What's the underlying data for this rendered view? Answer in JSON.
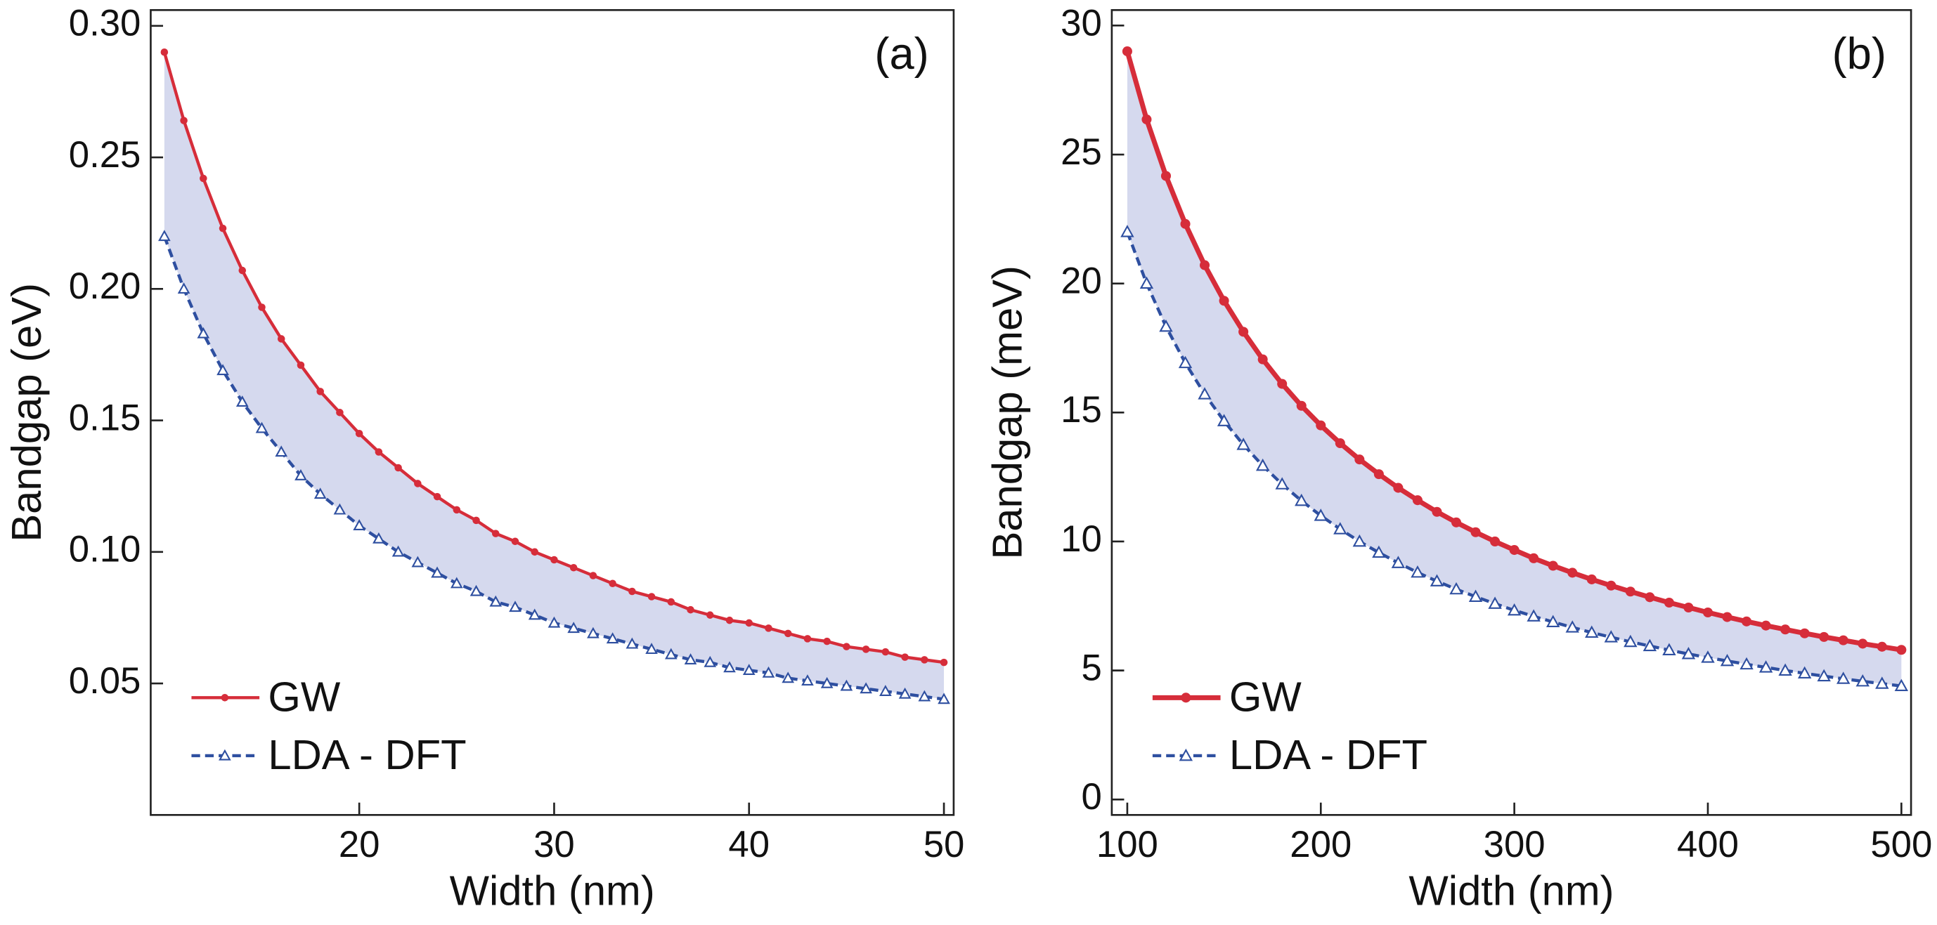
{
  "chart_data": [
    {
      "type": "line",
      "annotation": "(a)",
      "xlabel": "Width (nm)",
      "ylabel": "Bandgap (eV)",
      "x": [
        10,
        11,
        12,
        13,
        14,
        15,
        16,
        17,
        18,
        19,
        20,
        21,
        22,
        23,
        24,
        25,
        26,
        27,
        28,
        29,
        30,
        31,
        32,
        33,
        34,
        35,
        36,
        37,
        38,
        39,
        40,
        41,
        42,
        43,
        44,
        45,
        46,
        47,
        48,
        49,
        50
      ],
      "series": [
        {
          "name": "GW",
          "color": "#d62d3a",
          "marker": "circle",
          "linestyle": "solid",
          "values": [
            0.29,
            0.264,
            0.242,
            0.223,
            0.207,
            0.193,
            0.181,
            0.171,
            0.161,
            0.153,
            0.145,
            0.138,
            0.132,
            0.126,
            0.121,
            0.116,
            0.112,
            0.107,
            0.104,
            0.1,
            0.097,
            0.094,
            0.091,
            0.088,
            0.085,
            0.083,
            0.081,
            0.078,
            0.076,
            0.074,
            0.073,
            0.071,
            0.069,
            0.067,
            0.066,
            0.064,
            0.063,
            0.062,
            0.06,
            0.059,
            0.058
          ]
        },
        {
          "name": "LDA - DFT",
          "color": "#2e4fa0",
          "marker": "triangle",
          "linestyle": "dashed",
          "values": [
            0.22,
            0.2,
            0.183,
            0.169,
            0.157,
            0.147,
            0.138,
            0.129,
            0.122,
            0.116,
            0.11,
            0.105,
            0.1,
            0.096,
            0.092,
            0.088,
            0.085,
            0.081,
            0.079,
            0.076,
            0.073,
            0.071,
            0.069,
            0.067,
            0.065,
            0.063,
            0.061,
            0.059,
            0.058,
            0.056,
            0.055,
            0.054,
            0.052,
            0.051,
            0.05,
            0.049,
            0.048,
            0.047,
            0.046,
            0.045,
            0.044
          ]
        }
      ],
      "fill_between": true,
      "fill_color": "#d5d9ee",
      "xlim": [
        9.3,
        50.5
      ],
      "ylim": [
        0,
        0.306
      ],
      "xticks": [
        20,
        30,
        40,
        50
      ],
      "yticks": [
        0.05,
        {
          "value": 0.1,
          "label": "0.10"
        },
        0.15,
        {
          "value": 0.2,
          "label": "0.20"
        },
        0.25,
        {
          "value": 0.3,
          "label": "0.30"
        }
      ],
      "legend": "lower left"
    },
    {
      "type": "line",
      "annotation": "(b)",
      "xlabel": "Width (nm)",
      "ylabel": "Bandgap (meV)",
      "x": [
        100,
        110,
        120,
        130,
        140,
        150,
        160,
        170,
        180,
        190,
        200,
        210,
        220,
        230,
        240,
        250,
        260,
        270,
        280,
        290,
        300,
        310,
        320,
        330,
        340,
        350,
        360,
        370,
        380,
        390,
        400,
        410,
        420,
        430,
        440,
        450,
        460,
        470,
        480,
        490,
        500
      ],
      "series": [
        {
          "name": "GW",
          "color": "#d62d3a",
          "marker": "circle",
          "linestyle": "solid",
          "values": [
            29.0,
            26.36,
            24.17,
            22.31,
            20.71,
            19.33,
            18.13,
            17.06,
            16.11,
            15.26,
            14.5,
            13.81,
            13.18,
            12.61,
            12.08,
            11.6,
            11.15,
            10.74,
            10.36,
            10.0,
            9.67,
            9.35,
            9.06,
            8.79,
            8.53,
            8.29,
            8.06,
            7.84,
            7.63,
            7.44,
            7.25,
            7.07,
            6.9,
            6.74,
            6.59,
            6.44,
            6.3,
            6.17,
            6.04,
            5.92,
            5.8
          ]
        },
        {
          "name": "LDA - DFT",
          "color": "#2e4fa0",
          "marker": "triangle",
          "linestyle": "dashed",
          "values": [
            22.0,
            20.0,
            18.33,
            16.92,
            15.71,
            14.67,
            13.75,
            12.94,
            12.22,
            11.58,
            11.0,
            10.48,
            10.0,
            9.57,
            9.17,
            8.8,
            8.46,
            8.15,
            7.86,
            7.59,
            7.33,
            7.1,
            6.88,
            6.67,
            6.47,
            6.29,
            6.11,
            5.95,
            5.79,
            5.64,
            5.5,
            5.37,
            5.24,
            5.12,
            5.0,
            4.89,
            4.78,
            4.68,
            4.58,
            4.49,
            4.4
          ]
        }
      ],
      "fill_between": true,
      "fill_color": "#d5d9ee",
      "xlim": [
        92,
        505
      ],
      "ylim": [
        -0.6,
        30.6
      ],
      "xticks": [
        100,
        200,
        300,
        400,
        500
      ],
      "yticks": [
        0,
        5,
        10,
        15,
        20,
        25,
        30
      ],
      "legend": "lower left"
    }
  ]
}
